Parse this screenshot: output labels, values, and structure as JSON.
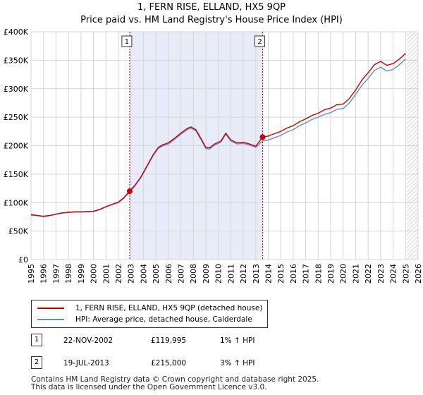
{
  "colors": {
    "property": "#cc0000",
    "hpi": "#5b8fd6",
    "shade": "#e8ecf9",
    "grid": "#d6d6d6",
    "future_hatch": "#999999"
  },
  "chart_data": {
    "type": "line",
    "title": "1, FERN RISE, ELLAND, HX5 9QP",
    "subtitle": "Price paid vs. HM Land Registry's House Price Index (HPI)",
    "xlabel": "",
    "ylabel": "",
    "xlim": [
      1995,
      2026
    ],
    "ylim": [
      0,
      400000
    ],
    "grid": true,
    "x_ticks": [
      1995,
      1996,
      1997,
      1998,
      1999,
      2000,
      2001,
      2002,
      2003,
      2004,
      2005,
      2006,
      2007,
      2008,
      2009,
      2010,
      2011,
      2012,
      2013,
      2014,
      2015,
      2016,
      2017,
      2018,
      2019,
      2020,
      2021,
      2022,
      2023,
      2024,
      2025,
      2026
    ],
    "y_ticks": [
      {
        "value": 0,
        "label": "£0"
      },
      {
        "value": 50000,
        "label": "£50K"
      },
      {
        "value": 100000,
        "label": "£100K"
      },
      {
        "value": 150000,
        "label": "£150K"
      },
      {
        "value": 200000,
        "label": "£200K"
      },
      {
        "value": 250000,
        "label": "£250K"
      },
      {
        "value": 300000,
        "label": "£300K"
      },
      {
        "value": 350000,
        "label": "£350K"
      },
      {
        "value": 400000,
        "label": "£400K"
      }
    ],
    "shaded_span": [
      2002.9,
      2013.55
    ],
    "future_from": 2025.1,
    "markers": [
      {
        "label": "1",
        "x": 2002.9,
        "y": 119995
      },
      {
        "label": "2",
        "x": 2013.55,
        "y": 215000
      }
    ],
    "series": [
      {
        "name": "1, FERN RISE, ELLAND, HX5 9QP (detached house)",
        "color": "#cc0000",
        "points": [
          [
            1995.0,
            79000
          ],
          [
            1995.5,
            77500
          ],
          [
            1996.0,
            76000
          ],
          [
            1996.5,
            77500
          ],
          [
            1997.0,
            80000
          ],
          [
            1997.5,
            82000
          ],
          [
            1998.0,
            83000
          ],
          [
            1998.5,
            84000
          ],
          [
            1999.0,
            84000
          ],
          [
            1999.5,
            84500
          ],
          [
            2000.0,
            85000
          ],
          [
            2000.5,
            88000
          ],
          [
            2001.0,
            93000
          ],
          [
            2001.5,
            97000
          ],
          [
            2002.0,
            101000
          ],
          [
            2002.4,
            108000
          ],
          [
            2002.9,
            119995
          ],
          [
            2003.3,
            130000
          ],
          [
            2003.8,
            145000
          ],
          [
            2004.3,
            165000
          ],
          [
            2004.8,
            185000
          ],
          [
            2005.2,
            197000
          ],
          [
            2005.6,
            202000
          ],
          [
            2006.0,
            205000
          ],
          [
            2006.5,
            213000
          ],
          [
            2007.0,
            222000
          ],
          [
            2007.5,
            230000
          ],
          [
            2007.8,
            233000
          ],
          [
            2008.2,
            228000
          ],
          [
            2008.6,
            213000
          ],
          [
            2009.0,
            197000
          ],
          [
            2009.3,
            196000
          ],
          [
            2009.7,
            203000
          ],
          [
            2010.2,
            208000
          ],
          [
            2010.6,
            222000
          ],
          [
            2011.0,
            210000
          ],
          [
            2011.5,
            205000
          ],
          [
            2012.0,
            206000
          ],
          [
            2012.5,
            203000
          ],
          [
            2013.0,
            199000
          ],
          [
            2013.55,
            215000
          ],
          [
            2014.0,
            217000
          ],
          [
            2014.5,
            221000
          ],
          [
            2015.0,
            225000
          ],
          [
            2015.5,
            231000
          ],
          [
            2016.0,
            235000
          ],
          [
            2016.5,
            242000
          ],
          [
            2017.0,
            247000
          ],
          [
            2017.5,
            253000
          ],
          [
            2018.0,
            257000
          ],
          [
            2018.5,
            263000
          ],
          [
            2019.0,
            266000
          ],
          [
            2019.5,
            272000
          ],
          [
            2020.0,
            273000
          ],
          [
            2020.5,
            283000
          ],
          [
            2021.0,
            298000
          ],
          [
            2021.5,
            315000
          ],
          [
            2022.0,
            328000
          ],
          [
            2022.5,
            342000
          ],
          [
            2023.0,
            348000
          ],
          [
            2023.5,
            341000
          ],
          [
            2024.0,
            344000
          ],
          [
            2024.5,
            352000
          ],
          [
            2025.0,
            362000
          ]
        ]
      },
      {
        "name": "HPI: Average price, detached house, Calderdale",
        "color": "#5b8fd6",
        "points": [
          [
            1995.0,
            78000
          ],
          [
            1995.5,
            77000
          ],
          [
            1996.0,
            75500
          ],
          [
            1996.5,
            77000
          ],
          [
            1997.0,
            79500
          ],
          [
            1997.5,
            81500
          ],
          [
            1998.0,
            82500
          ],
          [
            1998.5,
            83500
          ],
          [
            1999.0,
            83500
          ],
          [
            1999.5,
            84000
          ],
          [
            2000.0,
            84500
          ],
          [
            2000.5,
            87500
          ],
          [
            2001.0,
            92500
          ],
          [
            2001.5,
            96500
          ],
          [
            2002.0,
            100000
          ],
          [
            2002.4,
            107000
          ],
          [
            2002.9,
            118500
          ],
          [
            2003.3,
            128500
          ],
          [
            2003.8,
            143500
          ],
          [
            2004.3,
            163500
          ],
          [
            2004.8,
            183000
          ],
          [
            2005.2,
            195000
          ],
          [
            2005.6,
            200000
          ],
          [
            2006.0,
            203000
          ],
          [
            2006.5,
            211000
          ],
          [
            2007.0,
            220000
          ],
          [
            2007.5,
            228000
          ],
          [
            2007.8,
            231000
          ],
          [
            2008.2,
            226000
          ],
          [
            2008.6,
            211000
          ],
          [
            2009.0,
            195000
          ],
          [
            2009.3,
            194000
          ],
          [
            2009.7,
            201000
          ],
          [
            2010.2,
            206000
          ],
          [
            2010.6,
            220000
          ],
          [
            2011.0,
            208000
          ],
          [
            2011.5,
            203000
          ],
          [
            2012.0,
            204000
          ],
          [
            2012.5,
            201000
          ],
          [
            2013.0,
            197000
          ],
          [
            2013.55,
            208000
          ],
          [
            2014.0,
            210000
          ],
          [
            2014.5,
            214000
          ],
          [
            2015.0,
            218000
          ],
          [
            2015.5,
            224000
          ],
          [
            2016.0,
            228000
          ],
          [
            2016.5,
            235000
          ],
          [
            2017.0,
            240000
          ],
          [
            2017.5,
            246000
          ],
          [
            2018.0,
            250000
          ],
          [
            2018.5,
            255000
          ],
          [
            2019.0,
            258000
          ],
          [
            2019.5,
            264000
          ],
          [
            2020.0,
            265000
          ],
          [
            2020.5,
            275000
          ],
          [
            2021.0,
            290000
          ],
          [
            2021.5,
            306000
          ],
          [
            2022.0,
            318000
          ],
          [
            2022.5,
            332000
          ],
          [
            2023.0,
            338000
          ],
          [
            2023.5,
            331000
          ],
          [
            2024.0,
            334000
          ],
          [
            2024.5,
            342000
          ],
          [
            2025.0,
            352000
          ]
        ]
      }
    ]
  },
  "legend": {
    "property": "1, FERN RISE, ELLAND, HX5 9QP (detached house)",
    "hpi": "HPI: Average price, detached house, Calderdale"
  },
  "transactions": [
    {
      "label": "1",
      "date": "22-NOV-2002",
      "price": "£119,995",
      "hpi": "1% ↑ HPI"
    },
    {
      "label": "2",
      "date": "19-JUL-2013",
      "price": "£215,000",
      "hpi": "3% ↑ HPI"
    }
  ],
  "footer": {
    "line1": "Contains HM Land Registry data © Crown copyright and database right 2025.",
    "line2": "This data is licensed under the Open Government Licence v3.0."
  }
}
